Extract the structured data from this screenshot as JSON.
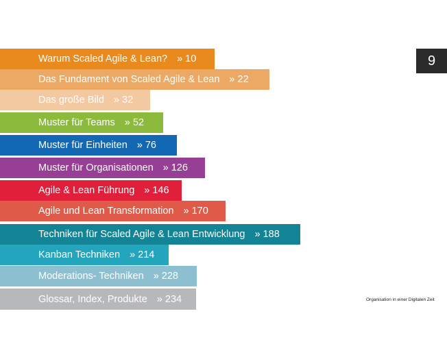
{
  "page_number": "9",
  "footer_note": "Organisation in einer Digitalen Zeit",
  "toc": {
    "items": [
      {
        "title": "Warum Scaled Agile & Lean?",
        "page": "» 10",
        "color": "#e98a1f"
      },
      {
        "title": "Das Fundament von Scaled Agile & Lean",
        "page": "» 22",
        "color": "#eca865"
      },
      {
        "title": "Das große Bild",
        "page": "» 32",
        "color": "#f2c9a1"
      },
      {
        "title": "Muster für Teams",
        "page": "» 52",
        "color": "#8cba3c"
      },
      {
        "title": "Muster für Einheiten",
        "page": "» 76",
        "color": "#1368b3"
      },
      {
        "title": "Muster für Organisationen",
        "page": "» 126",
        "color": "#963f94"
      },
      {
        "title": "Agile & Lean Führung",
        "page": "» 146",
        "color": "#e01f3a"
      },
      {
        "title": "Agile und Lean Transformation",
        "page": "» 170",
        "color": "#e05a4a"
      },
      {
        "title": "Techniken für Scaled Agile & Lean Entwicklung",
        "page": "» 188",
        "color": "#138396"
      },
      {
        "title": "Kanban Techniken",
        "page": "» 214",
        "color": "#23a5bd"
      },
      {
        "title": "Moderations- Techniken",
        "page": "» 228",
        "color": "#8cc0d1"
      },
      {
        "title": "Glossar, Index, Produkte",
        "page": "» 234",
        "color": "#b7b8ba"
      }
    ]
  }
}
